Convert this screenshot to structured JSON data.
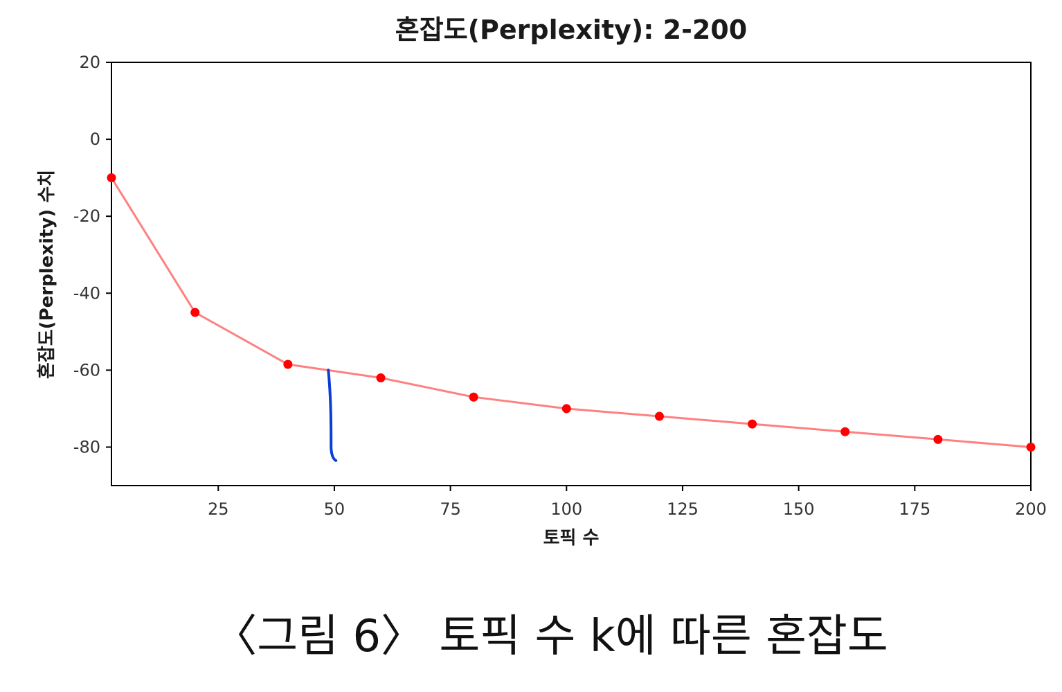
{
  "chart_data": {
    "type": "line",
    "title": "혼잡도(Perplexity): 2-200",
    "xlabel": "토픽 수",
    "ylabel": "혼잡도(Perplexity) 수치",
    "x": [
      2,
      20,
      40,
      60,
      80,
      100,
      120,
      140,
      160,
      180,
      200
    ],
    "series": [
      {
        "values": [
          -10,
          -45,
          -58.5,
          -62,
          -67,
          -70,
          -72,
          -74,
          -76,
          -78,
          -80
        ],
        "line_color": "#ff8080",
        "marker_color": "#ff0000"
      }
    ],
    "xlim": [
      2,
      200
    ],
    "ylim": [
      -90,
      20
    ],
    "xticks": [
      25,
      50,
      75,
      100,
      125,
      150,
      175,
      200
    ],
    "yticks": [
      20,
      0,
      -20,
      -40,
      -60,
      -80
    ],
    "grid": false,
    "annotation": {
      "type": "hand-drawn vertical stroke",
      "color": "#0a3fd6",
      "x": 49,
      "y_from": -60,
      "y_to": -83.5
    }
  },
  "caption": "〈그림 6〉 토픽 수 k에 따른 혼잡도"
}
